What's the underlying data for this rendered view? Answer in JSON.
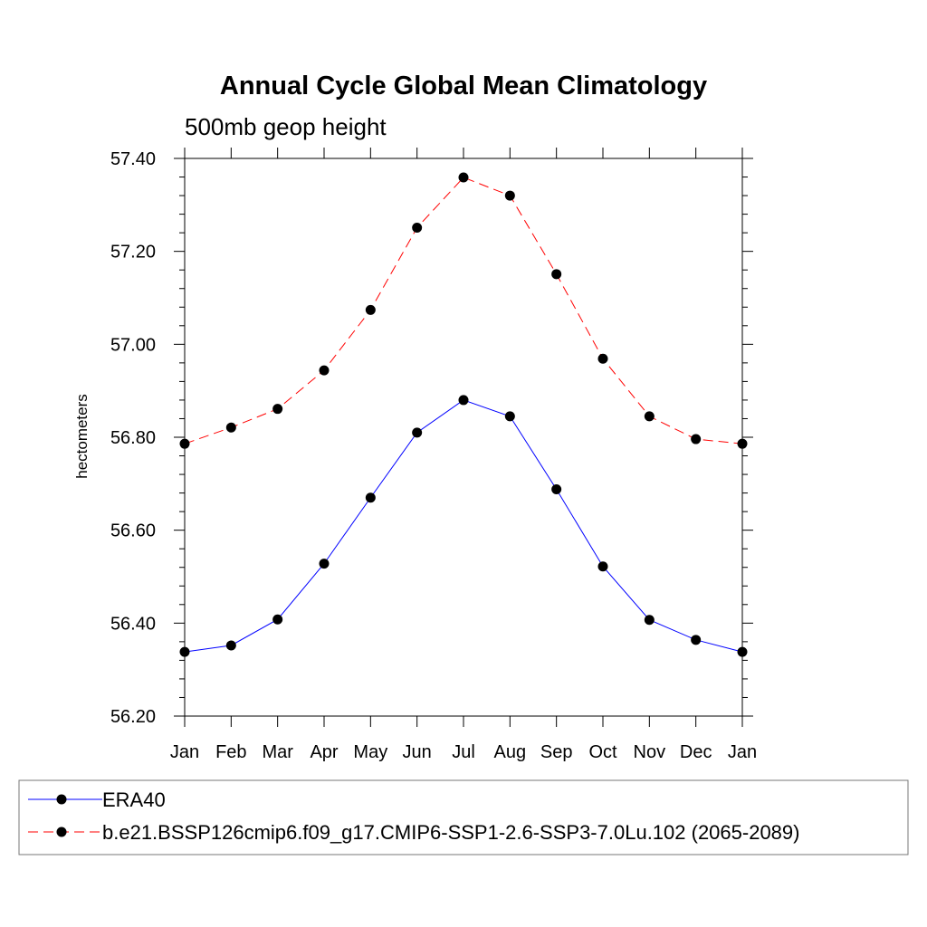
{
  "chart_data": {
    "type": "line",
    "title": "Annual Cycle Global Mean Climatology",
    "subtitle": "500mb geop height",
    "ylabel": "hectometers",
    "xlabel": "",
    "categories": [
      "Jan",
      "Feb",
      "Mar",
      "Apr",
      "May",
      "Jun",
      "Jul",
      "Aug",
      "Sep",
      "Oct",
      "Nov",
      "Dec",
      "Jan"
    ],
    "ylim": [
      56.2,
      57.4
    ],
    "yticks": [
      "56.20",
      "56.40",
      "56.60",
      "56.80",
      "57.00",
      "57.20",
      "57.40"
    ],
    "grid": false,
    "legend_position": "bottom",
    "series": [
      {
        "name": "ERA40",
        "color": "#0000ff",
        "line_style": "solid",
        "marker": "filled-circle",
        "values": [
          56.338,
          56.352,
          56.408,
          56.528,
          56.67,
          56.81,
          56.88,
          56.845,
          56.688,
          56.522,
          56.407,
          56.364,
          56.338
        ]
      },
      {
        "name": "b.e21.BSSP126cmip6.f09_g17.CMIP6-SSP1-2.6-SSP3-7.0Lu.102 (2065-2089)",
        "color": "#ff0000",
        "line_style": "dashed",
        "marker": "filled-circle",
        "values": [
          56.786,
          56.821,
          56.861,
          56.944,
          57.074,
          57.251,
          57.359,
          57.32,
          57.151,
          56.969,
          56.845,
          56.796,
          56.786
        ]
      }
    ]
  }
}
